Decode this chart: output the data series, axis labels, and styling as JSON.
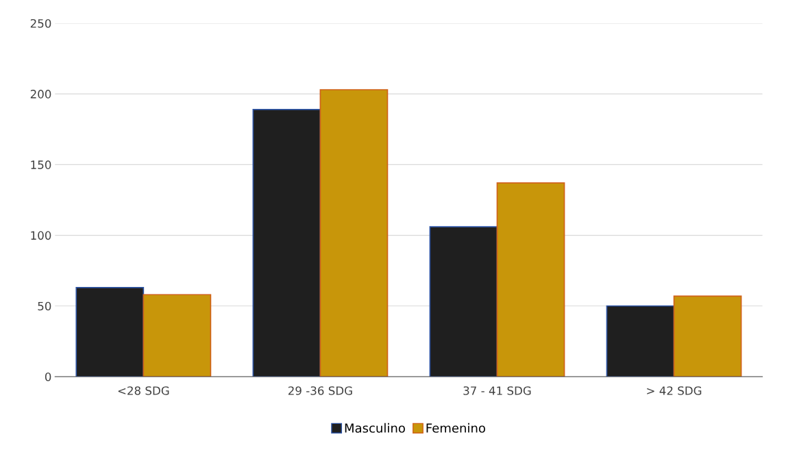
{
  "chart_data": {
    "type": "bar",
    "categories": [
      "<28 SDG",
      "29 -36 SDG",
      "37 - 41 SDG",
      "> 42 SDG"
    ],
    "series": [
      {
        "name": "Masculino",
        "color": "#1f1f1f",
        "values": [
          63,
          189,
          106,
          50
        ]
      },
      {
        "name": "Femenino",
        "color": "#c8960a",
        "values": [
          58,
          203,
          137,
          57
        ]
      }
    ],
    "ylim": [
      0,
      250
    ],
    "yticks": [
      0,
      50,
      100,
      150,
      200,
      250
    ],
    "grid": "y",
    "legend": "bottom"
  }
}
